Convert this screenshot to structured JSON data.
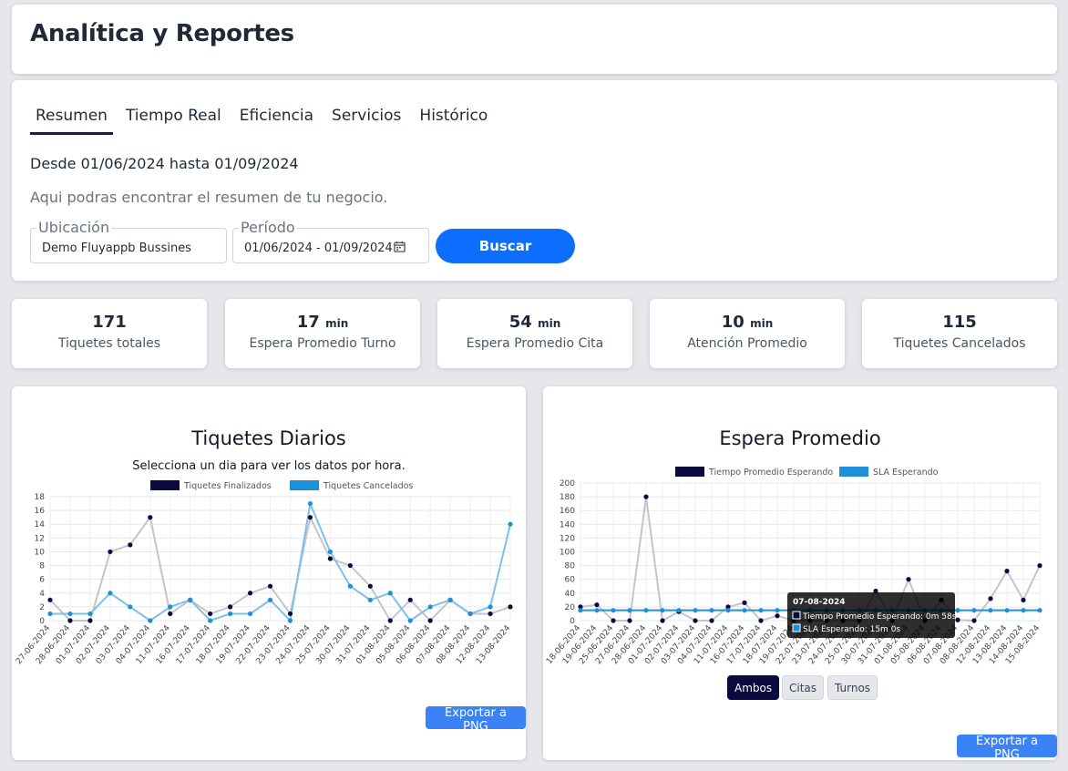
{
  "header": {
    "title": "Analítica y Reportes"
  },
  "tabs": [
    {
      "label": "Resumen",
      "active": true
    },
    {
      "label": "Tiempo Real",
      "active": false
    },
    {
      "label": "Eficiencia",
      "active": false
    },
    {
      "label": "Servicios",
      "active": false
    },
    {
      "label": "Histórico",
      "active": false
    }
  ],
  "filters": {
    "date_range_text": "Desde 01/06/2024 hasta 01/09/2024",
    "description": "Aqui podras encontrar el resumen de tu negocio.",
    "location": {
      "label": "Ubicación",
      "value": "Demo Fluyappb Bussines"
    },
    "period": {
      "label": "Período",
      "value": "01/06/2024 - 01/09/2024",
      "icon": "calendar-icon"
    },
    "search_label": "Buscar"
  },
  "stats": [
    {
      "value": "171",
      "unit": "",
      "label": "Tiquetes totales"
    },
    {
      "value": "17",
      "unit": "min",
      "label": "Espera Promedio Turno"
    },
    {
      "value": "54",
      "unit": "min",
      "label": "Espera Promedio Cita"
    },
    {
      "value": "10",
      "unit": "min",
      "label": "Atención Promedio"
    },
    {
      "value": "115",
      "unit": "",
      "label": "Tiquetes Cancelados"
    }
  ],
  "chart1": {
    "title": "Tiquetes Diarios",
    "subtitle": "Selecciona un dia para ver los datos por hora.",
    "export_label": "Exportar a PNG"
  },
  "chart2": {
    "title": "Espera Promedio",
    "export_label": "Exportar a PNG",
    "buttons": [
      "Ambos",
      "Citas",
      "Turnos"
    ],
    "tooltip": {
      "title": "07-08-2024",
      "lines": [
        "Tiempo Promedio Esperando: 0m 58s",
        "SLA Esperando: 15m 0s"
      ]
    }
  },
  "colors": {
    "primary": "#0d6efd",
    "dark_navy": "#0b0a3e",
    "series_gray": "#c4c4cc",
    "series_blue": "#1e90d8",
    "export_blue": "#3b82f6"
  },
  "chart_data": [
    {
      "type": "line",
      "title": "Tiquetes Diarios",
      "ylim": [
        0,
        18
      ],
      "yticks": [
        0,
        2,
        4,
        6,
        8,
        10,
        12,
        14,
        16,
        18
      ],
      "grid": true,
      "legend": "top",
      "x": [
        "27-06-2024",
        "28-06-2024",
        "01-07-2024",
        "02-07-2024",
        "03-07-2024",
        "04-07-2024",
        "11-07-2024",
        "16-07-2024",
        "17-07-2024",
        "18-07-2024",
        "19-07-2024",
        "22-07-2024",
        "23-07-2024",
        "24-07-2024",
        "25-07-2024",
        "30-07-2024",
        "31-07-2024",
        "01-08-2024",
        "05-08-2024",
        "06-08-2024",
        "07-08-2024",
        "08-08-2024",
        "12-08-2024",
        "13-08-2024"
      ],
      "series": [
        {
          "name": "Tiquetes Finalizados",
          "color": "#0b0a3e",
          "line_color": "#c4c4cc",
          "values": [
            3,
            0,
            0,
            10,
            11,
            15,
            1,
            3,
            1,
            2,
            4,
            5,
            1,
            15,
            9,
            8,
            5,
            0,
            3,
            0,
            3,
            1,
            1,
            2
          ]
        },
        {
          "name": "Tiquetes Cancelados",
          "color": "#1e90d8",
          "line_color": "#7ec0e6",
          "values": [
            1,
            1,
            1,
            4,
            2,
            0,
            2,
            3,
            0,
            1,
            1,
            3,
            0,
            17,
            10,
            5,
            3,
            4,
            0,
            2,
            3,
            1,
            2,
            14
          ]
        }
      ]
    },
    {
      "type": "line",
      "title": "Espera Promedio",
      "ylim": [
        0,
        200
      ],
      "yticks": [
        0,
        20,
        40,
        60,
        80,
        100,
        120,
        140,
        160,
        180,
        200
      ],
      "grid": true,
      "legend": "top",
      "x": [
        "18-06-2024",
        "19-06-2024",
        "25-06-2024",
        "27-06-2024",
        "28-06-2024",
        "01-07-2024",
        "02-07-2024",
        "03-07-2024",
        "04-07-2024",
        "11-07-2024",
        "16-07-2024",
        "17-07-2024",
        "18-07-2024",
        "19-07-2024",
        "22-07-2024",
        "23-07-2024",
        "24-07-2024",
        "25-07-2024",
        "30-07-2024",
        "31-07-2024",
        "01-08-2024",
        "05-08-2024",
        "06-08-2024",
        "07-08-2024",
        "08-08-2024",
        "12-08-2024",
        "13-08-2024",
        "14-08-2024",
        "15-08-2024"
      ],
      "series": [
        {
          "name": "Tiempo Promedio Esperando",
          "color": "#0b0a3e",
          "line_color": "#c4c4cc",
          "values": [
            20,
            23,
            0,
            0,
            180,
            0,
            13,
            0,
            0,
            20,
            26,
            0,
            7,
            0,
            0,
            0,
            0,
            0,
            43,
            0,
            60,
            0,
            30,
            1,
            0,
            32,
            72,
            30,
            80
          ]
        },
        {
          "name": "SLA Esperando",
          "color": "#1e90d8",
          "line_color": "#1e90d8",
          "values": [
            15,
            15,
            15,
            15,
            15,
            15,
            15,
            15,
            15,
            15,
            15,
            15,
            15,
            15,
            15,
            15,
            15,
            15,
            15,
            15,
            15,
            15,
            15,
            15,
            15,
            15,
            15,
            15,
            15
          ]
        }
      ]
    }
  ]
}
